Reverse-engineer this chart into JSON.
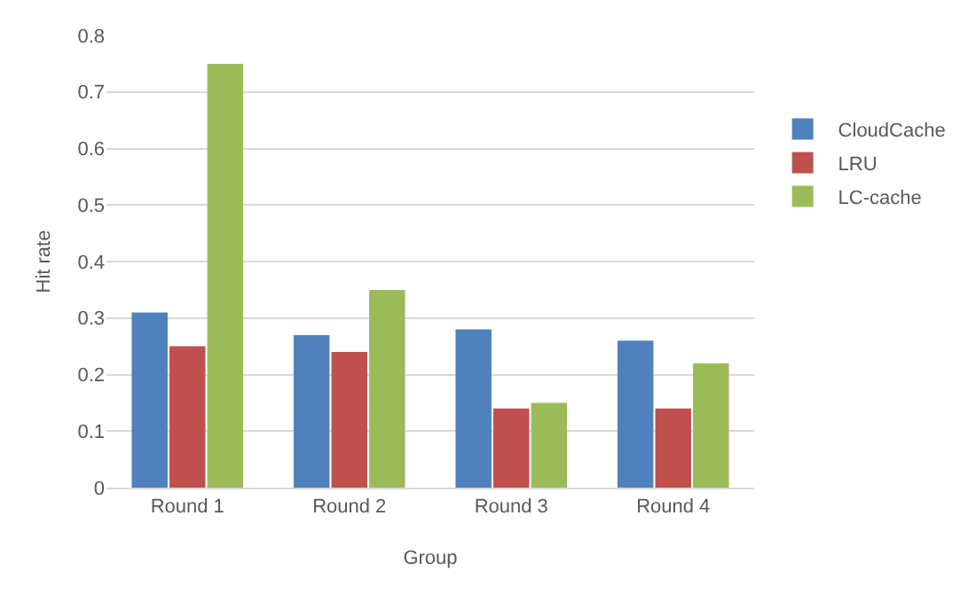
{
  "chart_data": {
    "type": "bar",
    "xlabel": "Group",
    "ylabel": "Hit rate",
    "categories": [
      "Round 1",
      "Round 2",
      "Round 3",
      "Round 4"
    ],
    "series": [
      {
        "name": "CloudCache",
        "color": "#4f81bd",
        "values": [
          0.31,
          0.27,
          0.28,
          0.26
        ]
      },
      {
        "name": "LRU",
        "color": "#c0504d",
        "values": [
          0.25,
          0.24,
          0.14,
          0.14
        ]
      },
      {
        "name": "LC-cache",
        "color": "#9bbb59",
        "values": [
          0.75,
          0.35,
          0.15,
          0.22
        ]
      }
    ],
    "ylim": [
      0,
      0.8
    ],
    "yticks": [
      0,
      0.1,
      0.2,
      0.3,
      0.4,
      0.5,
      0.6,
      0.7,
      0.8
    ],
    "grid": "y",
    "legend": "right"
  }
}
